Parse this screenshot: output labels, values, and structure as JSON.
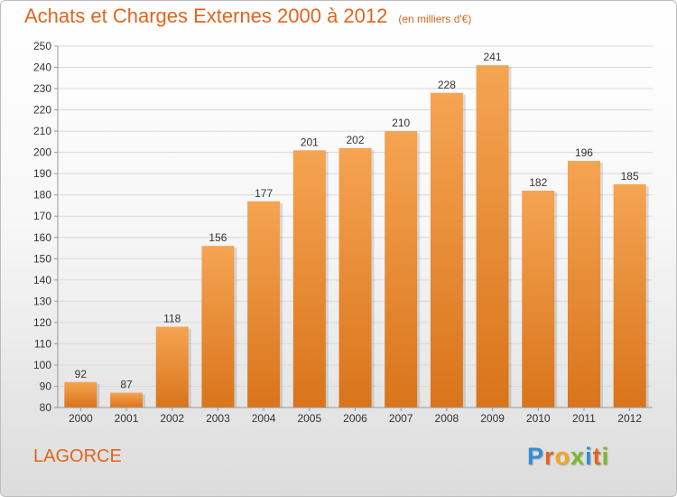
{
  "header": {
    "title": "Achats et Charges Externes 2000 à 2012",
    "subtitle": "(en milliers d'€)"
  },
  "footer": {
    "place": "LAGORCE",
    "brand_letters": [
      {
        "char": "P",
        "color": "#2f8fd6"
      },
      {
        "char": "r",
        "color": "#e0651e"
      },
      {
        "char": "o",
        "color": "#f0a81c"
      },
      {
        "char": "x",
        "color": "#7ab928"
      },
      {
        "char": "i",
        "color": "#2f8fd6"
      },
      {
        "char": "t",
        "color": "#e0651e"
      },
      {
        "char": "i",
        "color": "#7ab928"
      }
    ]
  },
  "colors": {
    "bar_top": "#f5a452",
    "bar_bottom": "#d9741a",
    "accent": "#e0651e",
    "grid": "#d8d8d8",
    "axis_text": "#333333"
  },
  "chart_data": {
    "type": "bar",
    "categories": [
      "2000",
      "2001",
      "2002",
      "2003",
      "2004",
      "2005",
      "2006",
      "2007",
      "2008",
      "2009",
      "2010",
      "2011",
      "2012"
    ],
    "values": [
      92,
      87,
      118,
      156,
      177,
      201,
      202,
      210,
      228,
      241,
      182,
      196,
      185
    ],
    "ylim": [
      80,
      250
    ],
    "ytick_step": 10,
    "grid": true,
    "data_labels": true
  }
}
